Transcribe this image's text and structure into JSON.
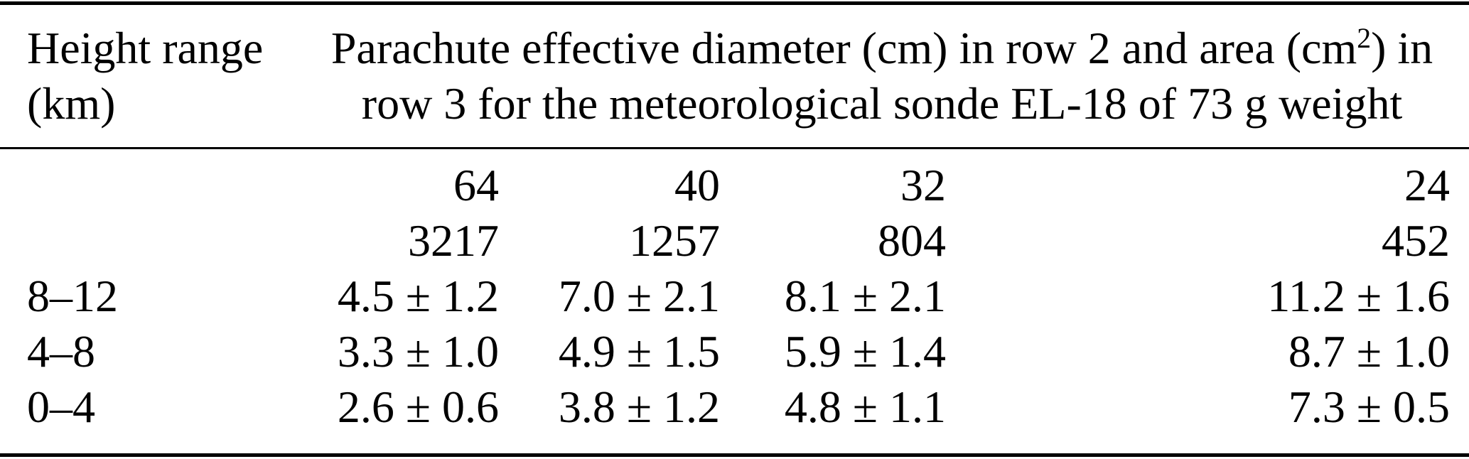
{
  "table": {
    "colors": {
      "text": "#000000",
      "background": "#ffffff",
      "rule": "#000000"
    },
    "col1_header": {
      "line1": "Height range",
      "line2": "(km)"
    },
    "span_header": {
      "line1_pre": "Parachute effective diameter (cm) in row 2 and area (cm",
      "line1_sup": "2",
      "line1_post": ") in",
      "line2": "row 3 for the meteorological sonde EL-18 of 73 g weight"
    },
    "diameter_row": {
      "label": "",
      "values": [
        "64",
        "40",
        "32",
        "24"
      ]
    },
    "area_row": {
      "label": "",
      "values": [
        "3217",
        "1257",
        "804",
        "452"
      ]
    },
    "data_rows": [
      {
        "height_range": "8–12",
        "values": [
          "4.5 ± 1.2",
          "7.0 ± 2.1",
          "8.1 ± 2.1",
          "11.2 ± 1.6"
        ]
      },
      {
        "height_range": "4–8",
        "values": [
          "3.3 ± 1.0",
          "4.9 ± 1.5",
          "5.9 ± 1.4",
          "8.7 ± 1.0"
        ]
      },
      {
        "height_range": "0–4",
        "values": [
          "2.6 ± 0.6",
          "3.8 ± 1.2",
          "4.8 ± 1.1",
          "7.3 ± 0.5"
        ]
      }
    ]
  }
}
